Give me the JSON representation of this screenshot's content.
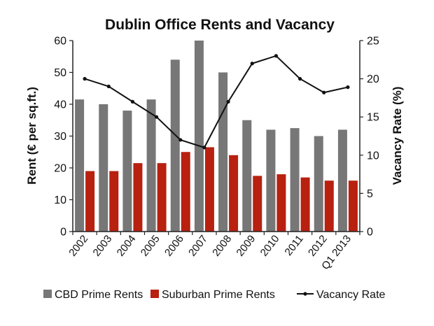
{
  "chart_data": {
    "type": "bar",
    "title": "Dublin Office Rents and Vacancy",
    "ylabel": "Rent (€ per sq.ft.)",
    "y2label": "Vacancy Rate (%)",
    "xlabel": "",
    "categories": [
      "2002",
      "2003",
      "2004",
      "2005",
      "2006",
      "2007",
      "2008",
      "2009",
      "2010",
      "2011",
      "2012",
      "Q1 2013"
    ],
    "ylim": [
      0,
      60
    ],
    "y_ticks": [
      "0",
      "10",
      "20",
      "30",
      "40",
      "50",
      "60"
    ],
    "y2lim": [
      0,
      25
    ],
    "y2_ticks": [
      "0",
      "5",
      "10",
      "15",
      "20",
      "25"
    ],
    "grid": false,
    "legend_position": "bottom",
    "series": [
      {
        "name": "CBD Prime Rents",
        "type": "bar",
        "axis": "left",
        "color": "#777777",
        "values": [
          41.5,
          40,
          38,
          41.5,
          54,
          60,
          50,
          35,
          32,
          32.5,
          30,
          32
        ]
      },
      {
        "name": "Suburban Prime Rents",
        "type": "bar",
        "axis": "left",
        "color": "#b82010",
        "values": [
          19,
          19,
          21.5,
          21.5,
          25,
          26.5,
          24,
          17.5,
          18,
          17,
          16,
          16
        ]
      },
      {
        "name": "Vacancy Rate",
        "type": "line",
        "axis": "right",
        "color": "#111111",
        "values": [
          20,
          19,
          17,
          15,
          12,
          11,
          17,
          22,
          23,
          20,
          18.2,
          18.9
        ]
      }
    ]
  }
}
